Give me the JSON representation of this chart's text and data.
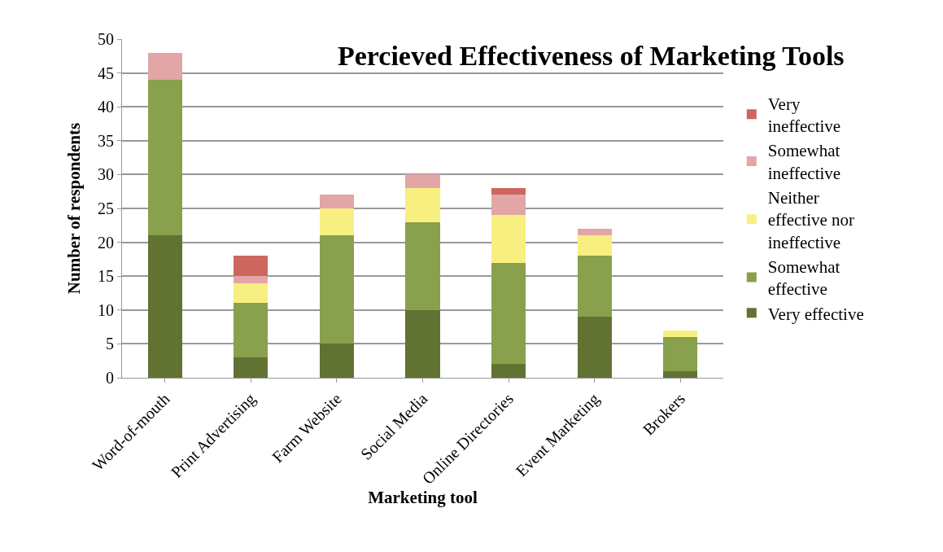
{
  "chart_data": {
    "type": "bar",
    "stacked": true,
    "title": "Percieved Effectiveness of Marketing Tools",
    "xlabel": "Marketing tool",
    "ylabel": "Number of respondents",
    "categories": [
      "Word-of-mouth",
      "Print Advertising",
      "Farm Website",
      "Social Media",
      "Online Directories",
      "Event Marketing",
      "Brokers"
    ],
    "series": [
      {
        "name": "Very effective",
        "color": "#617233",
        "values": [
          21,
          3,
          5,
          10,
          2,
          9,
          1
        ]
      },
      {
        "name": "Somewhat effective",
        "color": "#89a04c",
        "values": [
          23,
          8,
          16,
          13,
          15,
          9,
          5
        ]
      },
      {
        "name": "Neither effective nor ineffective",
        "color": "#f7ef80",
        "values": [
          0,
          3,
          4,
          5,
          7,
          3,
          1
        ]
      },
      {
        "name": "Somewhat ineffective",
        "color": "#e1a6a5",
        "values": [
          4,
          1,
          2,
          2,
          3,
          1,
          0
        ]
      },
      {
        "name": "Very ineffective",
        "color": "#cd665e",
        "values": [
          0,
          3,
          0,
          0,
          1,
          0,
          0
        ]
      }
    ],
    "ylim": [
      0,
      50
    ],
    "yticks": [
      0,
      5,
      10,
      15,
      20,
      25,
      30,
      35,
      40,
      45,
      50
    ],
    "grid": "y",
    "legend": "right"
  }
}
